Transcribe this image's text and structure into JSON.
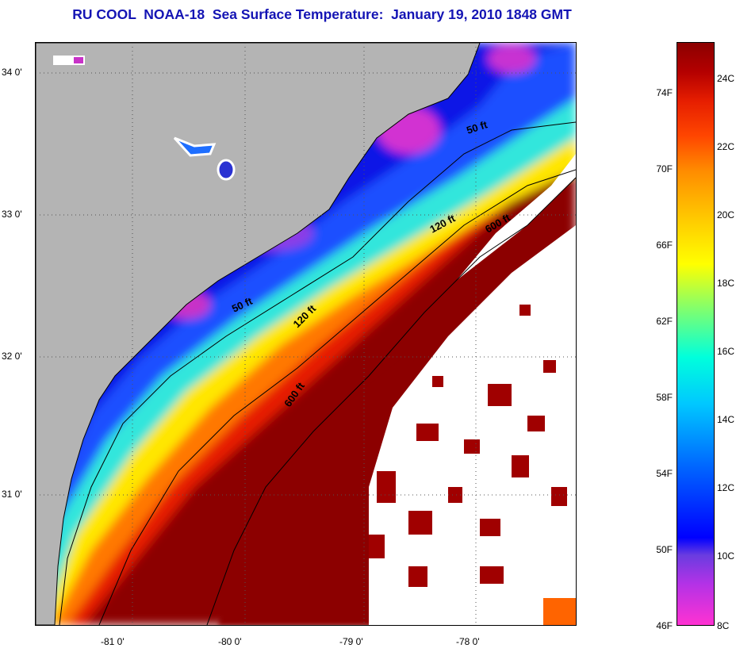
{
  "title": "RU COOL  NOAA-18  Sea Surface Temperature:  January 19, 2010 1848 GMT",
  "map": {
    "lat_labels": [
      "34 0'",
      "33 0'",
      "32 0'",
      "31 0'"
    ],
    "lon_labels": [
      "-81 0'",
      "-80 0'",
      "-79 0'",
      "-78 0'"
    ],
    "contour_labels": [
      "50 ft",
      "50 ft",
      "120 ft",
      "120 ft",
      "600 ft",
      "600 ft"
    ],
    "colors": {
      "land": "#b4b4b4",
      "cloud": "#ffffff",
      "coast": "#000000",
      "grid": "#555555"
    }
  },
  "legend": {
    "fahrenheit": [
      "74F",
      "70F",
      "66F",
      "62F",
      "58F",
      "54F",
      "50F",
      "46F"
    ],
    "celsius": [
      "24C",
      "22C",
      "20C",
      "18C",
      "16C",
      "14C",
      "12C",
      "10C",
      "8C"
    ],
    "range_f": [
      46,
      76
    ],
    "range_c": [
      8,
      25
    ]
  }
}
